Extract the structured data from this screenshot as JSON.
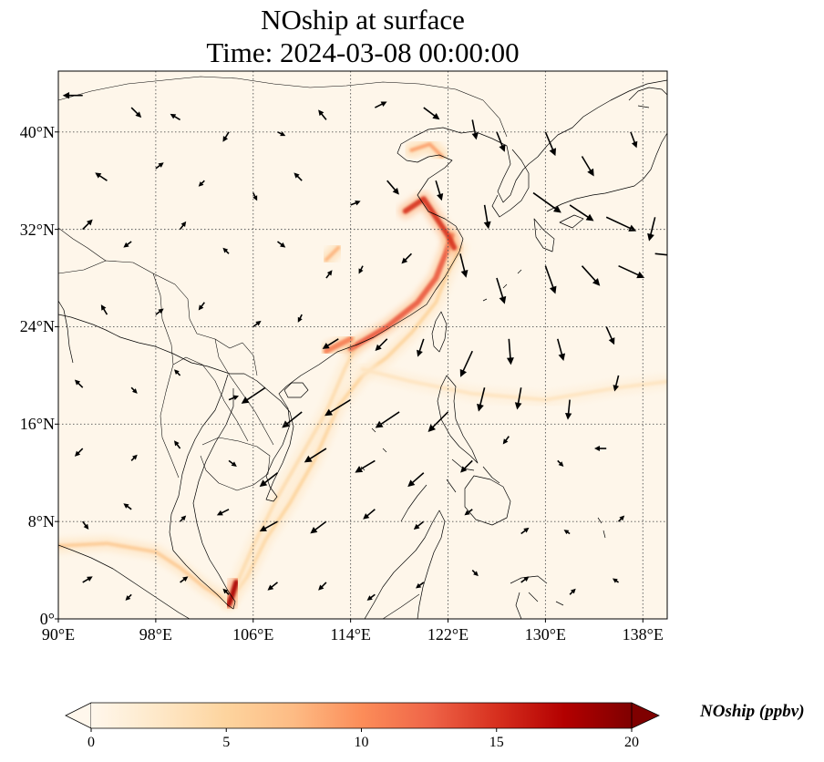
{
  "title": {
    "line1": "NOship at surface",
    "line2": "Time: 2024-03-08 00:00:00"
  },
  "map": {
    "projection": "PlateCarree",
    "lon_range": [
      90,
      140
    ],
    "lat_range": [
      0,
      45
    ],
    "lat_ticks": [
      {
        "value": 0,
        "label": "0°"
      },
      {
        "value": 8,
        "label": "8°N"
      },
      {
        "value": 16,
        "label": "16°N"
      },
      {
        "value": 24,
        "label": "24°N"
      },
      {
        "value": 32,
        "label": "32°N"
      },
      {
        "value": 40,
        "label": "40°N"
      }
    ],
    "lon_ticks": [
      {
        "value": 90,
        "label": "90°E"
      },
      {
        "value": 98,
        "label": "98°E"
      },
      {
        "value": 106,
        "label": "106°E"
      },
      {
        "value": 114,
        "label": "114°E"
      },
      {
        "value": 122,
        "label": "122°E"
      },
      {
        "value": 130,
        "label": "130°E"
      },
      {
        "value": 138,
        "label": "138°E"
      }
    ],
    "gridlines": "dotted",
    "background_color": "#fef6ea",
    "coastline_color": "#000000",
    "wind_arrow_color": "#000000"
  },
  "colorbar": {
    "label": "NOship (ppbv)",
    "min": 0,
    "max": 20,
    "extend": "both",
    "cmap": "OrRd",
    "ticks": [
      {
        "value": 0,
        "label": "0"
      },
      {
        "value": 5,
        "label": "5"
      },
      {
        "value": 10,
        "label": "10"
      },
      {
        "value": 15,
        "label": "15"
      },
      {
        "value": 20,
        "label": "20"
      }
    ],
    "colors": [
      "#fff7ec",
      "#fee8c8",
      "#fdd49e",
      "#fdbb84",
      "#fc8d59",
      "#ef6548",
      "#d7301f",
      "#b30000",
      "#7f0000"
    ]
  },
  "chart_data": {
    "type": "heatmap",
    "title": "NOship at surface",
    "subtitle": "Time: 2024-03-08 00:00:00",
    "xlabel": "",
    "ylabel": "",
    "xlim": [
      90,
      140
    ],
    "ylim": [
      0,
      45
    ],
    "value_label": "NOship (ppbv)",
    "shipping_lanes": [
      {
        "points": [
          [
            90,
            6.0
          ],
          [
            94,
            6.2
          ],
          [
            98,
            5.5
          ],
          [
            100,
            4.2
          ],
          [
            102,
            2.6
          ],
          [
            104,
            1.4
          ]
        ],
        "value": 6
      },
      {
        "points": [
          [
            104,
            1.4
          ],
          [
            105.5,
            3.5
          ],
          [
            107,
            6.5
          ],
          [
            109,
            9.5
          ],
          [
            111,
            13
          ],
          [
            113,
            17.5
          ],
          [
            115,
            20
          ],
          [
            117,
            21.5
          ],
          [
            119,
            23.5
          ],
          [
            121,
            26
          ],
          [
            122,
            28.5
          ],
          [
            123,
            30.5
          ]
        ],
        "value": 5
      },
      {
        "points": [
          [
            104,
            1.4
          ],
          [
            106,
            6
          ],
          [
            108,
            10
          ],
          [
            110,
            13.5
          ],
          [
            112,
            17
          ],
          [
            113.5,
            20.5
          ],
          [
            114.5,
            22.5
          ]
        ],
        "value": 4
      },
      {
        "points": [
          [
            114,
            22.2
          ],
          [
            117,
            24
          ],
          [
            119.5,
            26
          ],
          [
            121,
            28
          ],
          [
            121.8,
            30
          ],
          [
            122.3,
            31.5
          ]
        ],
        "value": 13
      },
      {
        "points": [
          [
            118.5,
            33.5
          ],
          [
            120,
            34.5
          ],
          [
            121,
            33
          ],
          [
            122,
            31.5
          ],
          [
            122.5,
            30.5
          ]
        ],
        "value": 15
      },
      {
        "points": [
          [
            119,
            38.5
          ],
          [
            120.5,
            39
          ],
          [
            121.5,
            38
          ]
        ],
        "value": 9
      },
      {
        "points": [
          [
            115,
            20.5
          ],
          [
            119,
            19.5
          ],
          [
            124,
            18.5
          ],
          [
            130,
            18
          ],
          [
            136,
            19
          ],
          [
            140,
            19.5
          ]
        ],
        "value": 3
      },
      {
        "points": [
          [
            112,
            22
          ],
          [
            114,
            23
          ]
        ],
        "value": 11
      },
      {
        "points": [
          [
            104,
            1.2
          ],
          [
            104.3,
            2
          ],
          [
            104.6,
            3
          ]
        ],
        "value": 18
      },
      {
        "points": [
          [
            112,
            29.5
          ],
          [
            113,
            30.5
          ]
        ],
        "value": 8
      }
    ],
    "wind_vectors": [
      [
        92,
        43,
        -1,
        0
      ],
      [
        96,
        42,
        0.5,
        -0.5
      ],
      [
        100,
        41,
        -0.5,
        0.3
      ],
      [
        104,
        40,
        -0.3,
        -0.5
      ],
      [
        108,
        40,
        0.4,
        -0.2
      ],
      [
        112,
        41,
        -0.4,
        0.5
      ],
      [
        116,
        42,
        0.6,
        0.3
      ],
      [
        120,
        42,
        0.8,
        -0.6
      ],
      [
        124,
        41,
        0.2,
        -1
      ],
      [
        126,
        40,
        0.4,
        -1
      ],
      [
        130,
        40,
        0.5,
        -1.2
      ],
      [
        133,
        38,
        0.6,
        -1
      ],
      [
        137,
        40,
        0.3,
        -0.8
      ],
      [
        94,
        36,
        -0.6,
        0.4
      ],
      [
        98,
        37,
        0.4,
        0.3
      ],
      [
        102,
        36,
        -0.3,
        -0.3
      ],
      [
        106,
        35,
        0.2,
        -0.4
      ],
      [
        110,
        36,
        -0.4,
        0.4
      ],
      [
        114,
        34,
        0.5,
        0.2
      ],
      [
        117,
        36,
        0.6,
        -0.7
      ],
      [
        121,
        36,
        0.3,
        -1
      ],
      [
        125,
        34,
        0.2,
        -1.2
      ],
      [
        129,
        35,
        1.4,
        -1
      ],
      [
        132,
        34,
        1.2,
        -0.8
      ],
      [
        135,
        33,
        1.5,
        -0.7
      ],
      [
        139,
        33,
        -0.3,
        -1.2
      ],
      [
        92,
        32,
        0.5,
        0.5
      ],
      [
        96,
        31,
        -0.4,
        -0.3
      ],
      [
        100,
        32,
        0.3,
        0.4
      ],
      [
        104,
        30,
        -0.3,
        0.3
      ],
      [
        108,
        31,
        0.4,
        -0.3
      ],
      [
        112,
        28,
        0.3,
        0.4
      ],
      [
        115,
        29,
        -0.2,
        -0.4
      ],
      [
        119,
        30,
        -0.5,
        -0.5
      ],
      [
        123,
        30,
        0.3,
        -1.2
      ],
      [
        126,
        28,
        0.4,
        -1.3
      ],
      [
        130,
        29,
        0.5,
        -1.4
      ],
      [
        133,
        29,
        0.9,
        -1
      ],
      [
        136,
        29,
        1.3,
        -0.6
      ],
      [
        139,
        30,
        1,
        -0.1
      ],
      [
        94,
        25,
        -0.3,
        0.5
      ],
      [
        98,
        25,
        0.4,
        0.3
      ],
      [
        102,
        26,
        -0.3,
        -0.4
      ],
      [
        106,
        24,
        0.4,
        0.3
      ],
      [
        110,
        25,
        -0.2,
        -0.4
      ],
      [
        113,
        23,
        -0.8,
        -0.5
      ],
      [
        117,
        23,
        -0.6,
        -0.6
      ],
      [
        120,
        23,
        -0.3,
        -0.9
      ],
      [
        124,
        22,
        -0.6,
        -1.3
      ],
      [
        127,
        23,
        0.1,
        -1.3
      ],
      [
        131,
        23,
        0.3,
        -1.1
      ],
      [
        135,
        24,
        0.4,
        -0.9
      ],
      [
        92,
        19,
        -0.4,
        0.4
      ],
      [
        96,
        19,
        0.3,
        -0.3
      ],
      [
        100,
        20,
        -0.3,
        0.3
      ],
      [
        104,
        18,
        0.5,
        0.2
      ],
      [
        107,
        19,
        -1.2,
        -0.8
      ],
      [
        110,
        17,
        -1,
        -0.8
      ],
      [
        114,
        18,
        -1.3,
        -0.8
      ],
      [
        118,
        17,
        -1.2,
        -0.8
      ],
      [
        122,
        17,
        -1,
        -1
      ],
      [
        125,
        19,
        -0.3,
        -1.2
      ],
      [
        128,
        19,
        -0.2,
        -1.1
      ],
      [
        132,
        18,
        -0.1,
        -1
      ],
      [
        136,
        20,
        -0.2,
        -0.8
      ],
      [
        92,
        14,
        -0.4,
        -0.4
      ],
      [
        96,
        13,
        0.3,
        0.3
      ],
      [
        100,
        14,
        -0.3,
        0.4
      ],
      [
        104,
        13,
        0.4,
        -0.3
      ],
      [
        108,
        12,
        -0.9,
        -0.7
      ],
      [
        112,
        14,
        -1.1,
        -0.7
      ],
      [
        116,
        13,
        -1,
        -0.6
      ],
      [
        120,
        12,
        -0.8,
        -0.7
      ],
      [
        124,
        13,
        -0.6,
        -0.6
      ],
      [
        127,
        15,
        -0.3,
        -0.4
      ],
      [
        131,
        13,
        0.3,
        -0.3
      ],
      [
        135,
        14,
        -0.6,
        0
      ],
      [
        92,
        8,
        0.3,
        -0.4
      ],
      [
        96,
        9,
        -0.4,
        0.3
      ],
      [
        100,
        8,
        0.3,
        0.3
      ],
      [
        104,
        9,
        -0.6,
        -0.3
      ],
      [
        108,
        8,
        -0.9,
        -0.5
      ],
      [
        112,
        8,
        -0.8,
        -0.6
      ],
      [
        116,
        9,
        -0.6,
        -0.5
      ],
      [
        120,
        8,
        -0.5,
        -0.4
      ],
      [
        124,
        9,
        -0.4,
        -0.3
      ],
      [
        128,
        7,
        0.4,
        0.3
      ],
      [
        132,
        7,
        -0.3,
        0.2
      ],
      [
        136,
        8,
        0.3,
        0.3
      ],
      [
        92,
        3,
        0.5,
        0.3
      ],
      [
        96,
        2,
        -0.3,
        -0.3
      ],
      [
        100,
        3,
        0.4,
        0.3
      ],
      [
        104,
        2,
        -0.3,
        0.3
      ],
      [
        108,
        3,
        -0.5,
        -0.4
      ],
      [
        112,
        3,
        -0.4,
        -0.4
      ],
      [
        116,
        2,
        -0.4,
        -0.3
      ],
      [
        120,
        3,
        -0.4,
        -0.3
      ],
      [
        124,
        4,
        0.3,
        -0.3
      ],
      [
        128,
        3,
        0.4,
        0.3
      ],
      [
        132,
        2,
        0.3,
        0.3
      ],
      [
        136,
        3,
        -0.3,
        0.2
      ]
    ]
  }
}
